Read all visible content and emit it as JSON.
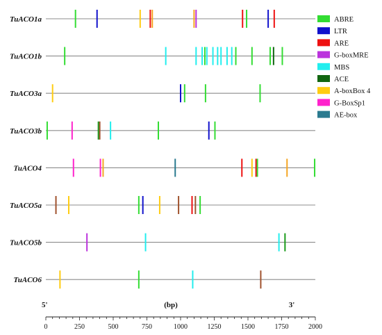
{
  "chart_data": {
    "type": "diagram",
    "genes": [
      "TuACO1a",
      "TuACO1b",
      "TuACO3a",
      "TuACO3b",
      "TuACO4",
      "TuACO5a",
      "TuACO5b",
      "TuACO6"
    ],
    "elements": [
      {
        "name": "ABRE",
        "color": "#33dd33"
      },
      {
        "name": "LTR",
        "color": "#1111cc"
      },
      {
        "name": "ARE",
        "color": "#ee1111"
      },
      {
        "name": "G-boxMRE",
        "color": "#bb33dd"
      },
      {
        "name": "MBS",
        "color": "#22eeee"
      },
      {
        "name": "ACE",
        "color": "#116611"
      },
      {
        "name": "A-boxBox 4",
        "color": "#ffcc11"
      },
      {
        "name": "G-BoxSp1",
        "color": "#ff22cc"
      },
      {
        "name": "AE-box",
        "color": "#2a7a8f"
      }
    ],
    "extra_element_colors": {
      "brown": "#a0522d",
      "orange": "#f5a623",
      "darkgreen": "#1a9a1a"
    },
    "sites": {
      "TuACO1a": [
        [
          220,
          "#33dd33"
        ],
        [
          380,
          "#1111cc"
        ],
        [
          700,
          "#ffcc11"
        ],
        [
          775,
          "#ee1111"
        ],
        [
          790,
          "#f5a623"
        ],
        [
          1100,
          "#f5a623"
        ],
        [
          1115,
          "#bb33dd"
        ],
        [
          1460,
          "#ee1111"
        ],
        [
          1490,
          "#33dd33"
        ],
        [
          1650,
          "#1111cc"
        ],
        [
          1695,
          "#ee1111"
        ]
      ],
      "TuACO1b": [
        [
          140,
          "#33dd33"
        ],
        [
          890,
          "#22eeee"
        ],
        [
          1115,
          "#22eeee"
        ],
        [
          1160,
          "#22eeee"
        ],
        [
          1180,
          "#33dd33"
        ],
        [
          1195,
          "#22eeee"
        ],
        [
          1240,
          "#22eeee"
        ],
        [
          1275,
          "#22eeee"
        ],
        [
          1300,
          "#22eeee"
        ],
        [
          1345,
          "#22eeee"
        ],
        [
          1380,
          "#22eeee"
        ],
        [
          1410,
          "#33dd33"
        ],
        [
          1530,
          "#33dd33"
        ],
        [
          1665,
          "#33dd33"
        ],
        [
          1690,
          "#116611"
        ],
        [
          1755,
          "#33dd33"
        ]
      ],
      "TuACO3a": [
        [
          50,
          "#ffcc11"
        ],
        [
          1000,
          "#1111cc"
        ],
        [
          1030,
          "#33dd33"
        ],
        [
          1185,
          "#33dd33"
        ],
        [
          1590,
          "#33dd33"
        ]
      ],
      "TuACO3b": [
        [
          10,
          "#33dd33"
        ],
        [
          195,
          "#ff22cc"
        ],
        [
          390,
          "#1a9a1a"
        ],
        [
          400,
          "#a0522d"
        ],
        [
          480,
          "#22eeee"
        ],
        [
          835,
          "#33dd33"
        ],
        [
          1210,
          "#1111cc"
        ],
        [
          1255,
          "#33dd33"
        ]
      ],
      "TuACO4": [
        [
          205,
          "#ff22cc"
        ],
        [
          405,
          "#ff22cc"
        ],
        [
          425,
          "#f5a623"
        ],
        [
          960,
          "#2a7a8f"
        ],
        [
          1455,
          "#ee1111"
        ],
        [
          1530,
          "#ffcc11"
        ],
        [
          1560,
          "#ee1111"
        ],
        [
          1570,
          "#33dd33"
        ],
        [
          1790,
          "#f5a623"
        ],
        [
          1995,
          "#33dd33"
        ]
      ],
      "TuACO5a": [
        [
          75,
          "#a0522d"
        ],
        [
          170,
          "#ffcc11"
        ],
        [
          690,
          "#33dd33"
        ],
        [
          720,
          "#1111cc"
        ],
        [
          845,
          "#ffcc11"
        ],
        [
          985,
          "#a0522d"
        ],
        [
          1085,
          "#ee1111"
        ],
        [
          1110,
          "#a0522d"
        ],
        [
          1145,
          "#33dd33"
        ]
      ],
      "TuACO5b": [
        [
          305,
          "#bb33dd"
        ],
        [
          740,
          "#22eeee"
        ],
        [
          1730,
          "#22eeee"
        ],
        [
          1775,
          "#1a9a1a"
        ]
      ],
      "TuACO6": [
        [
          105,
          "#ffcc11"
        ],
        [
          690,
          "#33dd33"
        ],
        [
          1090,
          "#22eeee"
        ],
        [
          1595,
          "#a0522d"
        ]
      ]
    },
    "xlabel": "(bp)",
    "left_end": "5'",
    "right_end": "3'",
    "x_ticks": [
      0,
      250,
      500,
      750,
      1000,
      1250,
      1500,
      1750,
      2000
    ],
    "xlim": [
      0,
      2000
    ]
  }
}
